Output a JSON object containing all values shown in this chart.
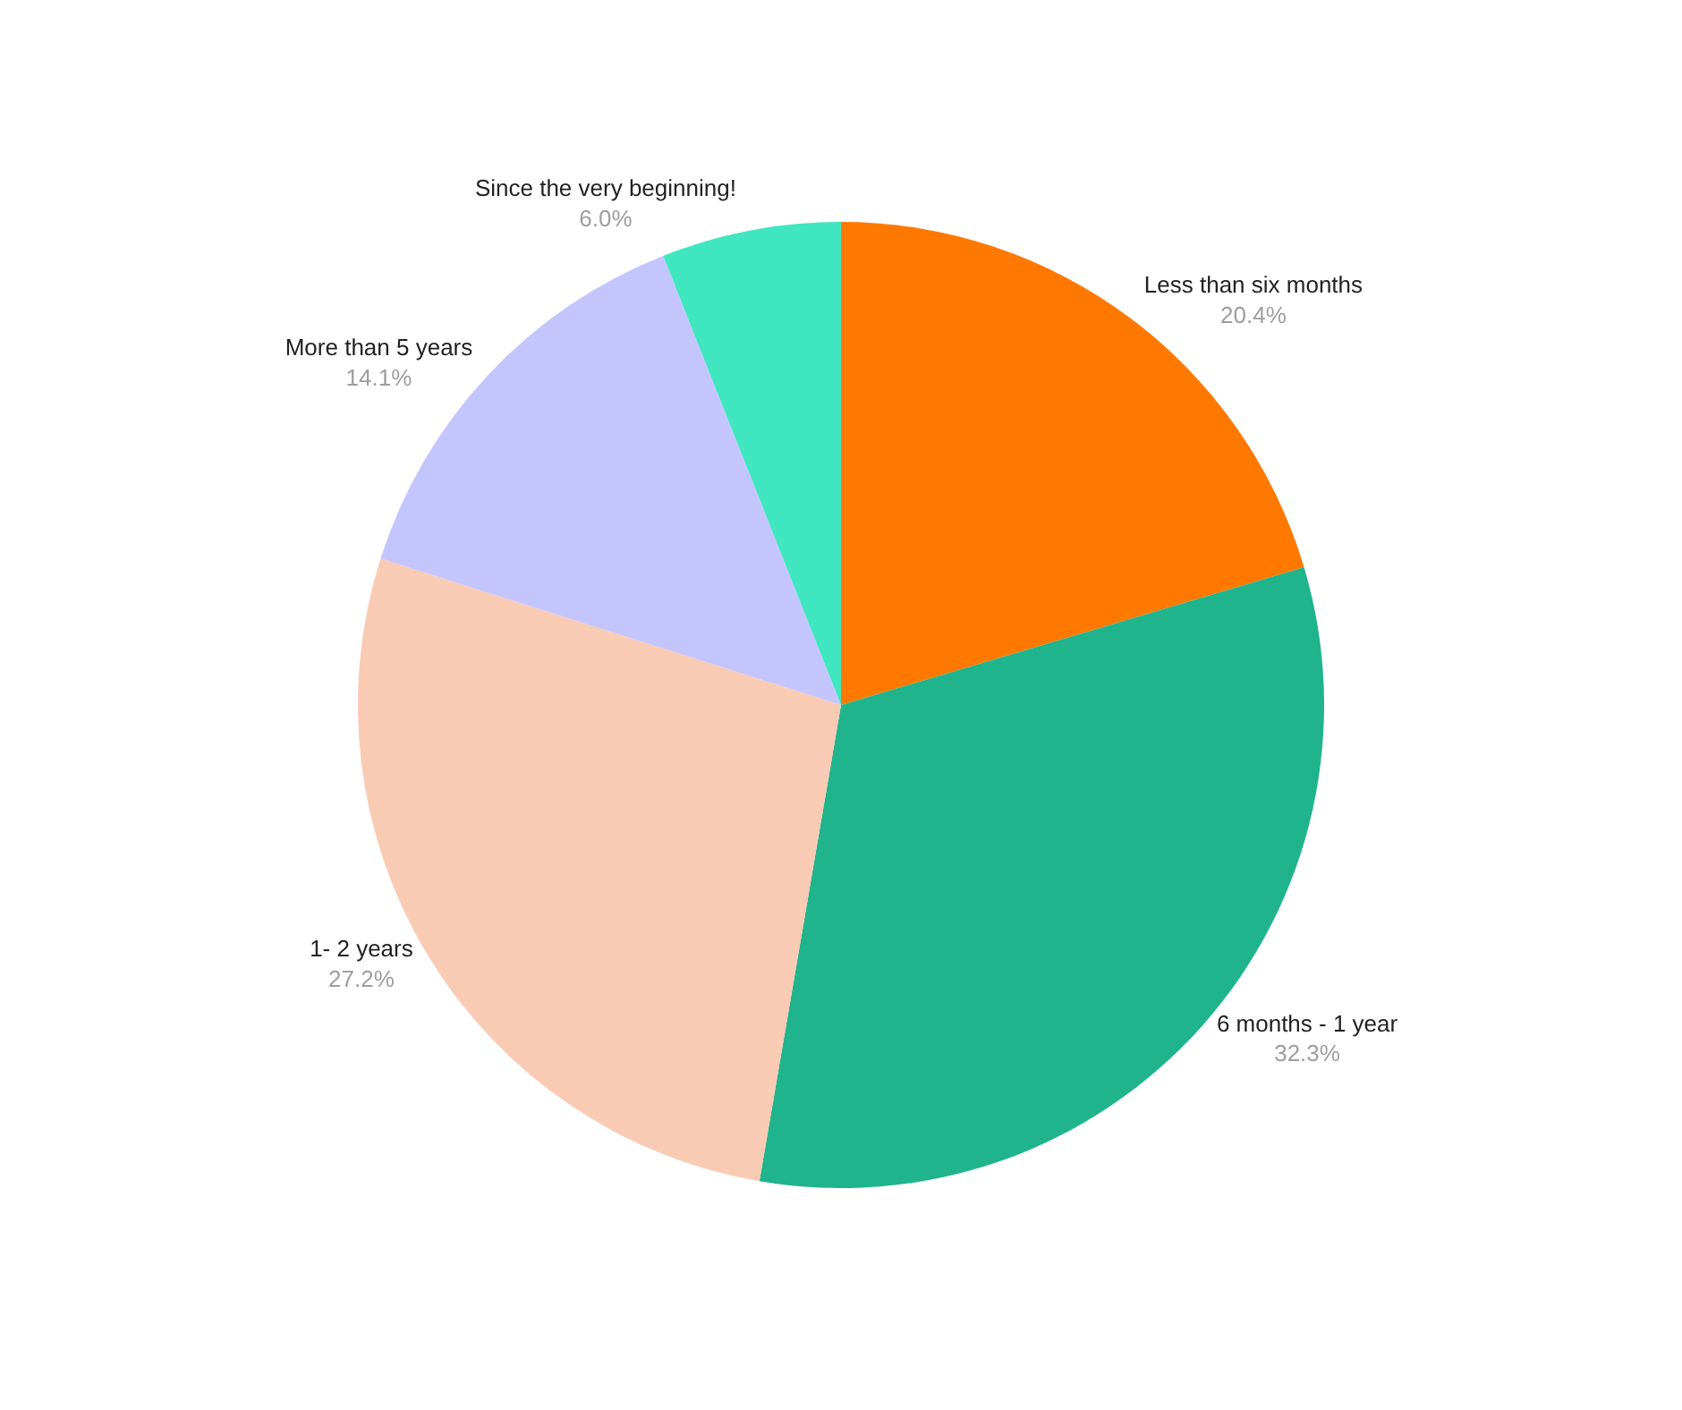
{
  "chart_data": {
    "type": "pie",
    "categories": [
      "Less than six months",
      "6 months - 1 year",
      "1- 2 years",
      "More than 5 years",
      "Since the very beginning!"
    ],
    "values": [
      20.4,
      32.3,
      27.2,
      14.1,
      6.0
    ],
    "value_labels": [
      "20.4%",
      "32.3%",
      "27.2%",
      "14.1%",
      "6.0%"
    ],
    "colors": [
      "#ff7900",
      "#20b48c",
      "#f9cbb4",
      "#c5c5fd",
      "#40e6c0"
    ],
    "legend": false
  }
}
